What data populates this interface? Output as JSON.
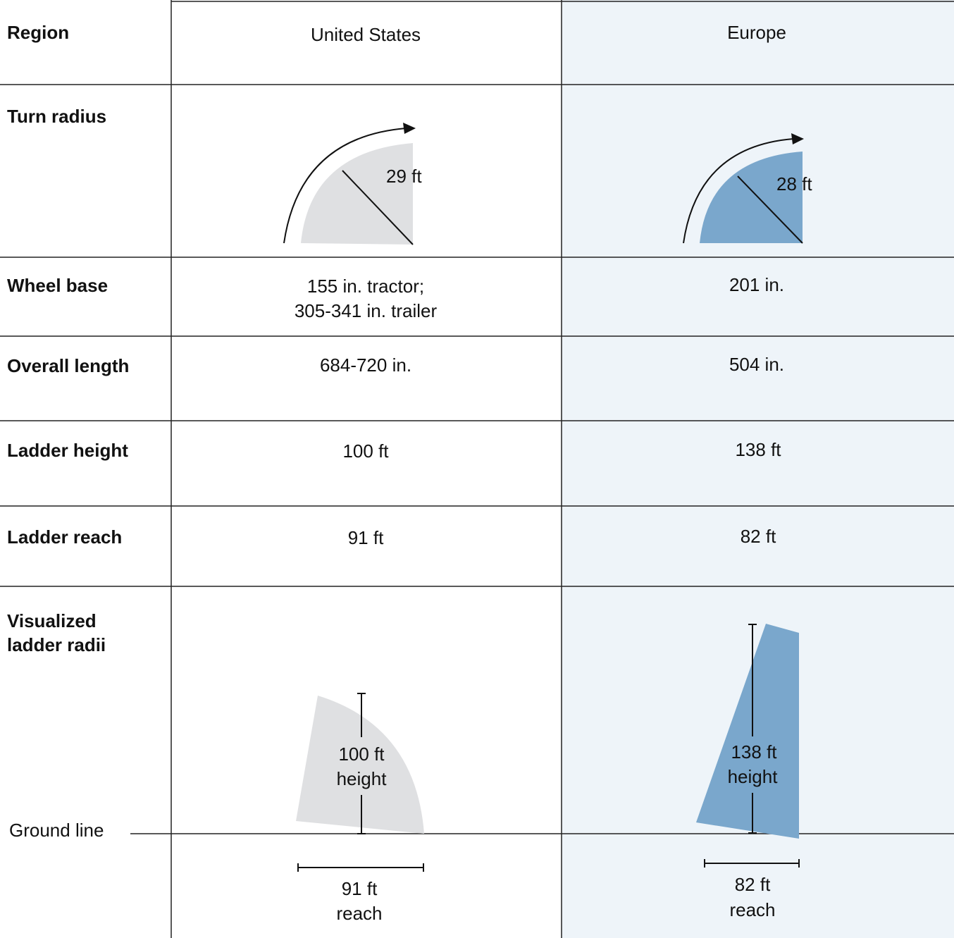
{
  "table": {
    "header": [
      "Region",
      "United States",
      "Europe"
    ],
    "rows": [
      [
        "Turn radius",
        "29 ft",
        "28 ft"
      ],
      [
        "Wheel base",
        [
          "155 in. tractor;",
          "305-341 in. trailer"
        ],
        "201 in."
      ],
      [
        "Overall length",
        "684-720 in.",
        "504 in."
      ],
      [
        "Ladder height",
        "100 ft",
        "138 ft"
      ],
      [
        "Ladder reach",
        "91 ft",
        "82 ft"
      ]
    ],
    "visualized": {
      "label": [
        "Visualized",
        "ladder radii"
      ],
      "ground_line": "Ground line",
      "us": {
        "height": [
          "100 ft",
          "height"
        ],
        "reach": [
          "91 ft",
          "reach"
        ]
      },
      "europe": {
        "height": [
          "138 ft",
          "height"
        ],
        "reach": [
          "82 ft",
          "reach"
        ]
      }
    }
  }
}
